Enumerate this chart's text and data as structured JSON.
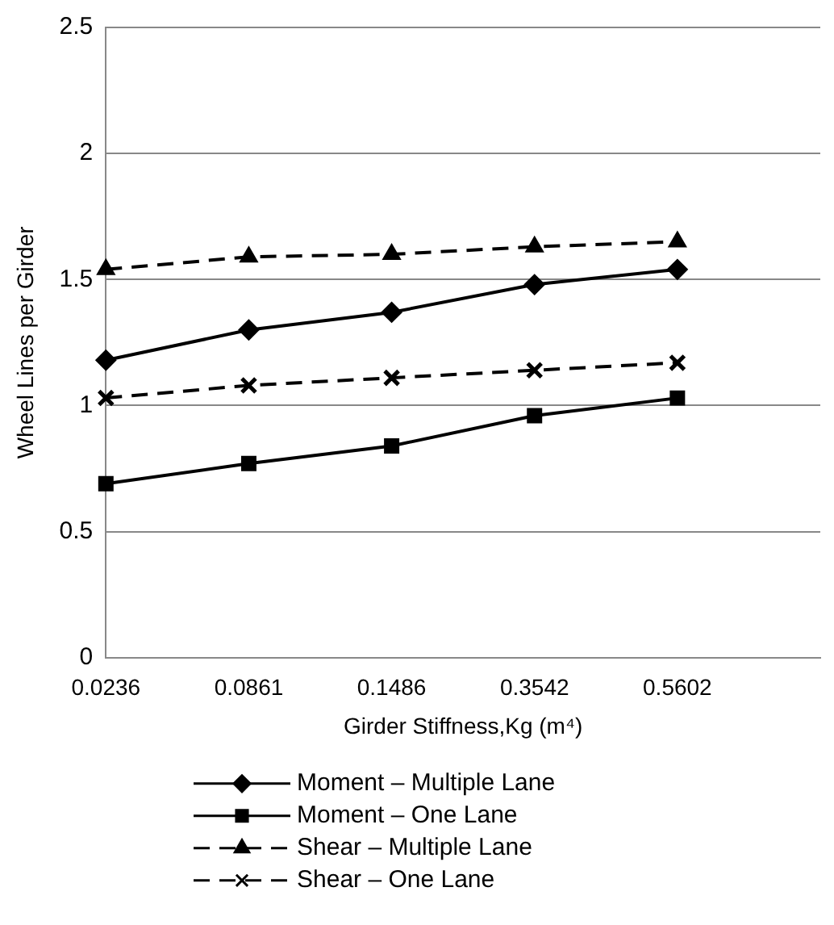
{
  "chart_data": {
    "type": "line",
    "xlabel": "Girder Stiffness,Kg (m⁴)",
    "ylabel": "Wheel Lines per Girder",
    "categories": [
      "0.0236",
      "0.0861",
      "0.1486",
      "0.3542",
      "0.5602",
      null
    ],
    "ylim": [
      0,
      2.5
    ],
    "yticks": [
      0,
      0.5,
      1,
      1.5,
      2,
      2.5
    ],
    "grid": "y",
    "legend": "bottom",
    "series": [
      {
        "name": "Moment – Multiple Lane",
        "color": "#000000",
        "marker": "diamond",
        "line_style": "solid",
        "values": [
          1.18,
          1.3,
          1.37,
          1.48,
          1.54,
          null
        ]
      },
      {
        "name": "Moment – One Lane",
        "color": "#000000",
        "marker": "square",
        "line_style": "solid",
        "values": [
          0.69,
          0.77,
          0.84,
          0.96,
          1.03,
          null
        ]
      },
      {
        "name": "Shear – Multiple Lane",
        "color": "#000000",
        "marker": "triangle",
        "line_style": "dashed",
        "values": [
          1.54,
          1.59,
          1.6,
          1.63,
          1.65,
          null
        ]
      },
      {
        "name": "Shear – One Lane",
        "color": "#000000",
        "marker": "cross",
        "line_style": "dashed",
        "values": [
          1.03,
          1.08,
          1.11,
          1.14,
          1.17,
          null
        ]
      }
    ]
  }
}
